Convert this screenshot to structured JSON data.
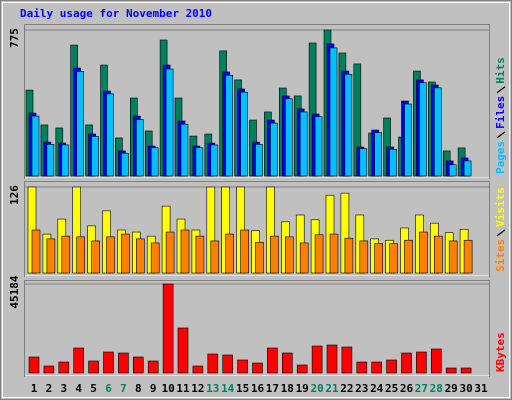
{
  "chart_data": {
    "title": "Daily usage for November 2010",
    "categories": [
      "1",
      "2",
      "3",
      "4",
      "5",
      "6",
      "7",
      "8",
      "9",
      "10",
      "11",
      "12",
      "13",
      "14",
      "15",
      "16",
      "17",
      "18",
      "19",
      "20",
      "21",
      "22",
      "23",
      "24",
      "25",
      "26",
      "27",
      "28",
      "29",
      "30",
      "31"
    ],
    "label_colors": [
      "#000000",
      "#000000",
      "#000000",
      "#000000",
      "#000000",
      "#00805c",
      "#00805c",
      "#000000",
      "#000000",
      "#000000",
      "#000000",
      "#000000",
      "#00805c",
      "#00805c",
      "#000000",
      "#000000",
      "#000000",
      "#000000",
      "#000000",
      "#00805c",
      "#00805c",
      "#000000",
      "#000000",
      "#000000",
      "#000000",
      "#000000",
      "#00805c",
      "#00805c",
      "#000000",
      "#000000",
      "#000000"
    ],
    "panels": [
      {
        "type": "bar",
        "ylim": [
          0,
          775
        ],
        "yticks": [
          775
        ],
        "grid": true,
        "series": [
          {
            "name": "Hits",
            "color": "#00805c",
            "values": [
              456,
              271,
              255,
              695,
              271,
              589,
              202,
              414,
              239,
              722,
              414,
              212,
              223,
              664,
              510,
              297,
              340,
              467,
              425,
              706,
              775,
              653,
              595,
              228,
              308,
              207,
              557,
              499,
              133,
              149,
              null
            ]
          },
          {
            "name": "Files",
            "color": "#0000ff",
            "values": [
              334,
              180,
              175,
              573,
              223,
              451,
              133,
              318,
              159,
              589,
              292,
              159,
              175,
              552,
              462,
              180,
              297,
              425,
              356,
              329,
              701,
              557,
              154,
              244,
              154,
              398,
              510,
              483,
              80,
              96,
              null
            ]
          },
          {
            "name": "Pages",
            "color": "#00c0ff",
            "values": [
              318,
              168,
              165,
              555,
              210,
              436,
              121,
              300,
              150,
              568,
              275,
              150,
              165,
              535,
              445,
              168,
              281,
              410,
              340,
              315,
              680,
              540,
              145,
              230,
              142,
              382,
              495,
              468,
              60,
              80,
              null
            ]
          }
        ]
      },
      {
        "type": "bar",
        "ylim": [
          0,
          126
        ],
        "yticks": [
          126
        ],
        "grid": true,
        "series": [
          {
            "name": "Visits",
            "color": "#ffff00",
            "values": [
              126,
              57,
              79,
              126,
              69,
              91,
              63,
              60,
              54,
              98,
              79,
              63,
              126,
              126,
              126,
              62,
              126,
              75,
              85,
              78,
              114,
              117,
              85,
              50,
              48,
              66,
              85,
              73,
              59,
              64,
              null
            ]
          },
          {
            "name": "Sites",
            "color": "#ff8000",
            "values": [
              63,
              50,
              54,
              53,
              47,
              53,
              57,
              50,
              44,
              60,
              63,
              54,
              47,
              57,
              63,
              45,
              54,
              53,
              44,
              56,
              57,
              51,
              47,
              43,
              43,
              48,
              60,
              54,
              47,
              48,
              null
            ]
          }
        ]
      },
      {
        "type": "bar",
        "ylim": [
          0,
          45184
        ],
        "yticks": [
          45184
        ],
        "grid": true,
        "series": [
          {
            "name": "KBytes",
            "color": "#ff0000",
            "values": [
              8123,
              3554,
              5585,
              12692,
              6092,
              10661,
              10153,
              8123,
              6092,
              45184,
              22846,
              3554,
              9646,
              9138,
              6600,
              5077,
              12692,
              10153,
              4062,
              13707,
              14215,
              13200,
              5585,
              5585,
              6600,
              10153,
              10661,
              12184,
              2538,
              2538,
              null
            ]
          }
        ]
      }
    ]
  }
}
